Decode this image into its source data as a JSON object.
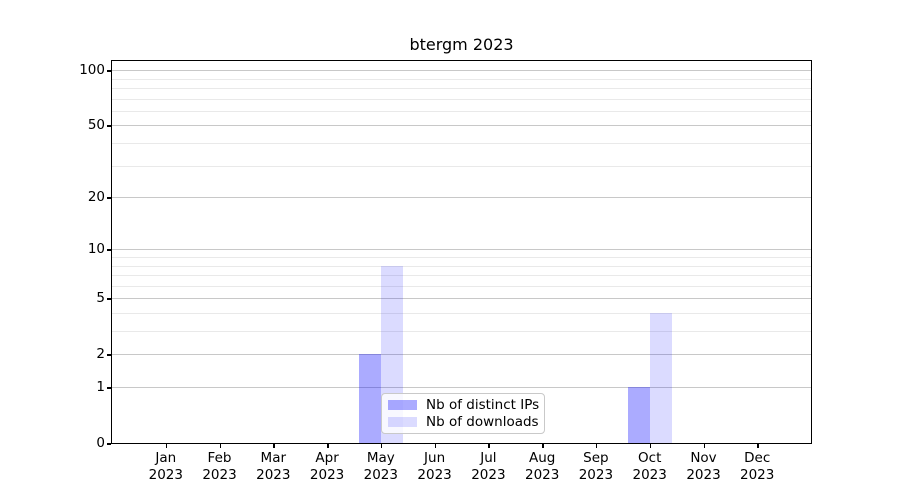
{
  "chart_data": {
    "type": "bar",
    "title": "btergm 2023",
    "categories": [
      "Jan",
      "Feb",
      "Mar",
      "Apr",
      "May",
      "Jun",
      "Jul",
      "Aug",
      "Sep",
      "Oct",
      "Nov",
      "Dec"
    ],
    "category_year": "2023",
    "series": [
      {
        "name": "Nb of distinct IPs",
        "color": "rgba(0,0,255,0.33)",
        "values": [
          0,
          0,
          0,
          0,
          2,
          0,
          0,
          0,
          0,
          1,
          0,
          0
        ]
      },
      {
        "name": "Nb of downloads",
        "color": "rgba(0,0,255,0.14)",
        "values": [
          0,
          0,
          0,
          0,
          8,
          0,
          0,
          0,
          0,
          4,
          0,
          0
        ]
      }
    ],
    "xlabel": "",
    "ylabel": "",
    "yscale": "log1p",
    "ylim": [
      0,
      112
    ],
    "y_ticks": [
      0,
      1,
      2,
      5,
      10,
      20,
      50,
      100
    ],
    "y_minor_gridlines": [
      3,
      4,
      6,
      7,
      8,
      9,
      30,
      40,
      60,
      70,
      80,
      90
    ],
    "grid": "horizontal",
    "grid_major_color": "#c8c8c8",
    "grid_minor_color": "#e9e9e9",
    "spine_color": "#000000",
    "legend_position": "lower center (inside plot)"
  }
}
